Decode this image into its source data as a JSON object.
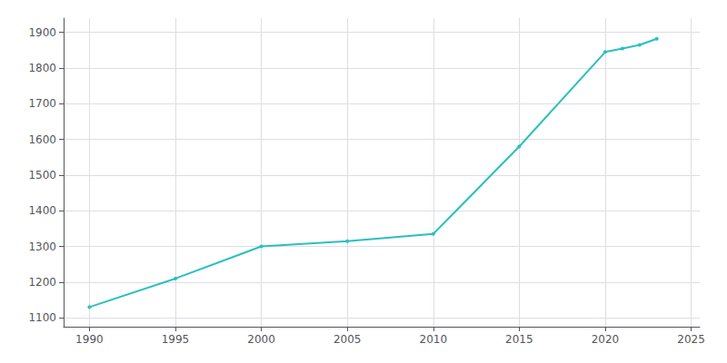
{
  "chart_data": {
    "type": "line",
    "x": [
      1990,
      1995,
      2000,
      2005,
      2010,
      2015,
      2020,
      2021,
      2022,
      2023
    ],
    "values": [
      1130,
      1210,
      1300,
      1315,
      1335,
      1580,
      1845,
      1855,
      1865,
      1882
    ],
    "color": "#2bbfbf",
    "marker": "circle",
    "xlim": [
      1988.5,
      2025.5
    ],
    "xticks": [
      1990,
      1995,
      2000,
      2005,
      2010,
      2015,
      2020,
      2025
    ],
    "ylim": [
      1075,
      1940
    ],
    "yticks": [
      1100,
      1200,
      1300,
      1400,
      1500,
      1600,
      1700,
      1800,
      1900
    ],
    "grid": true
  }
}
